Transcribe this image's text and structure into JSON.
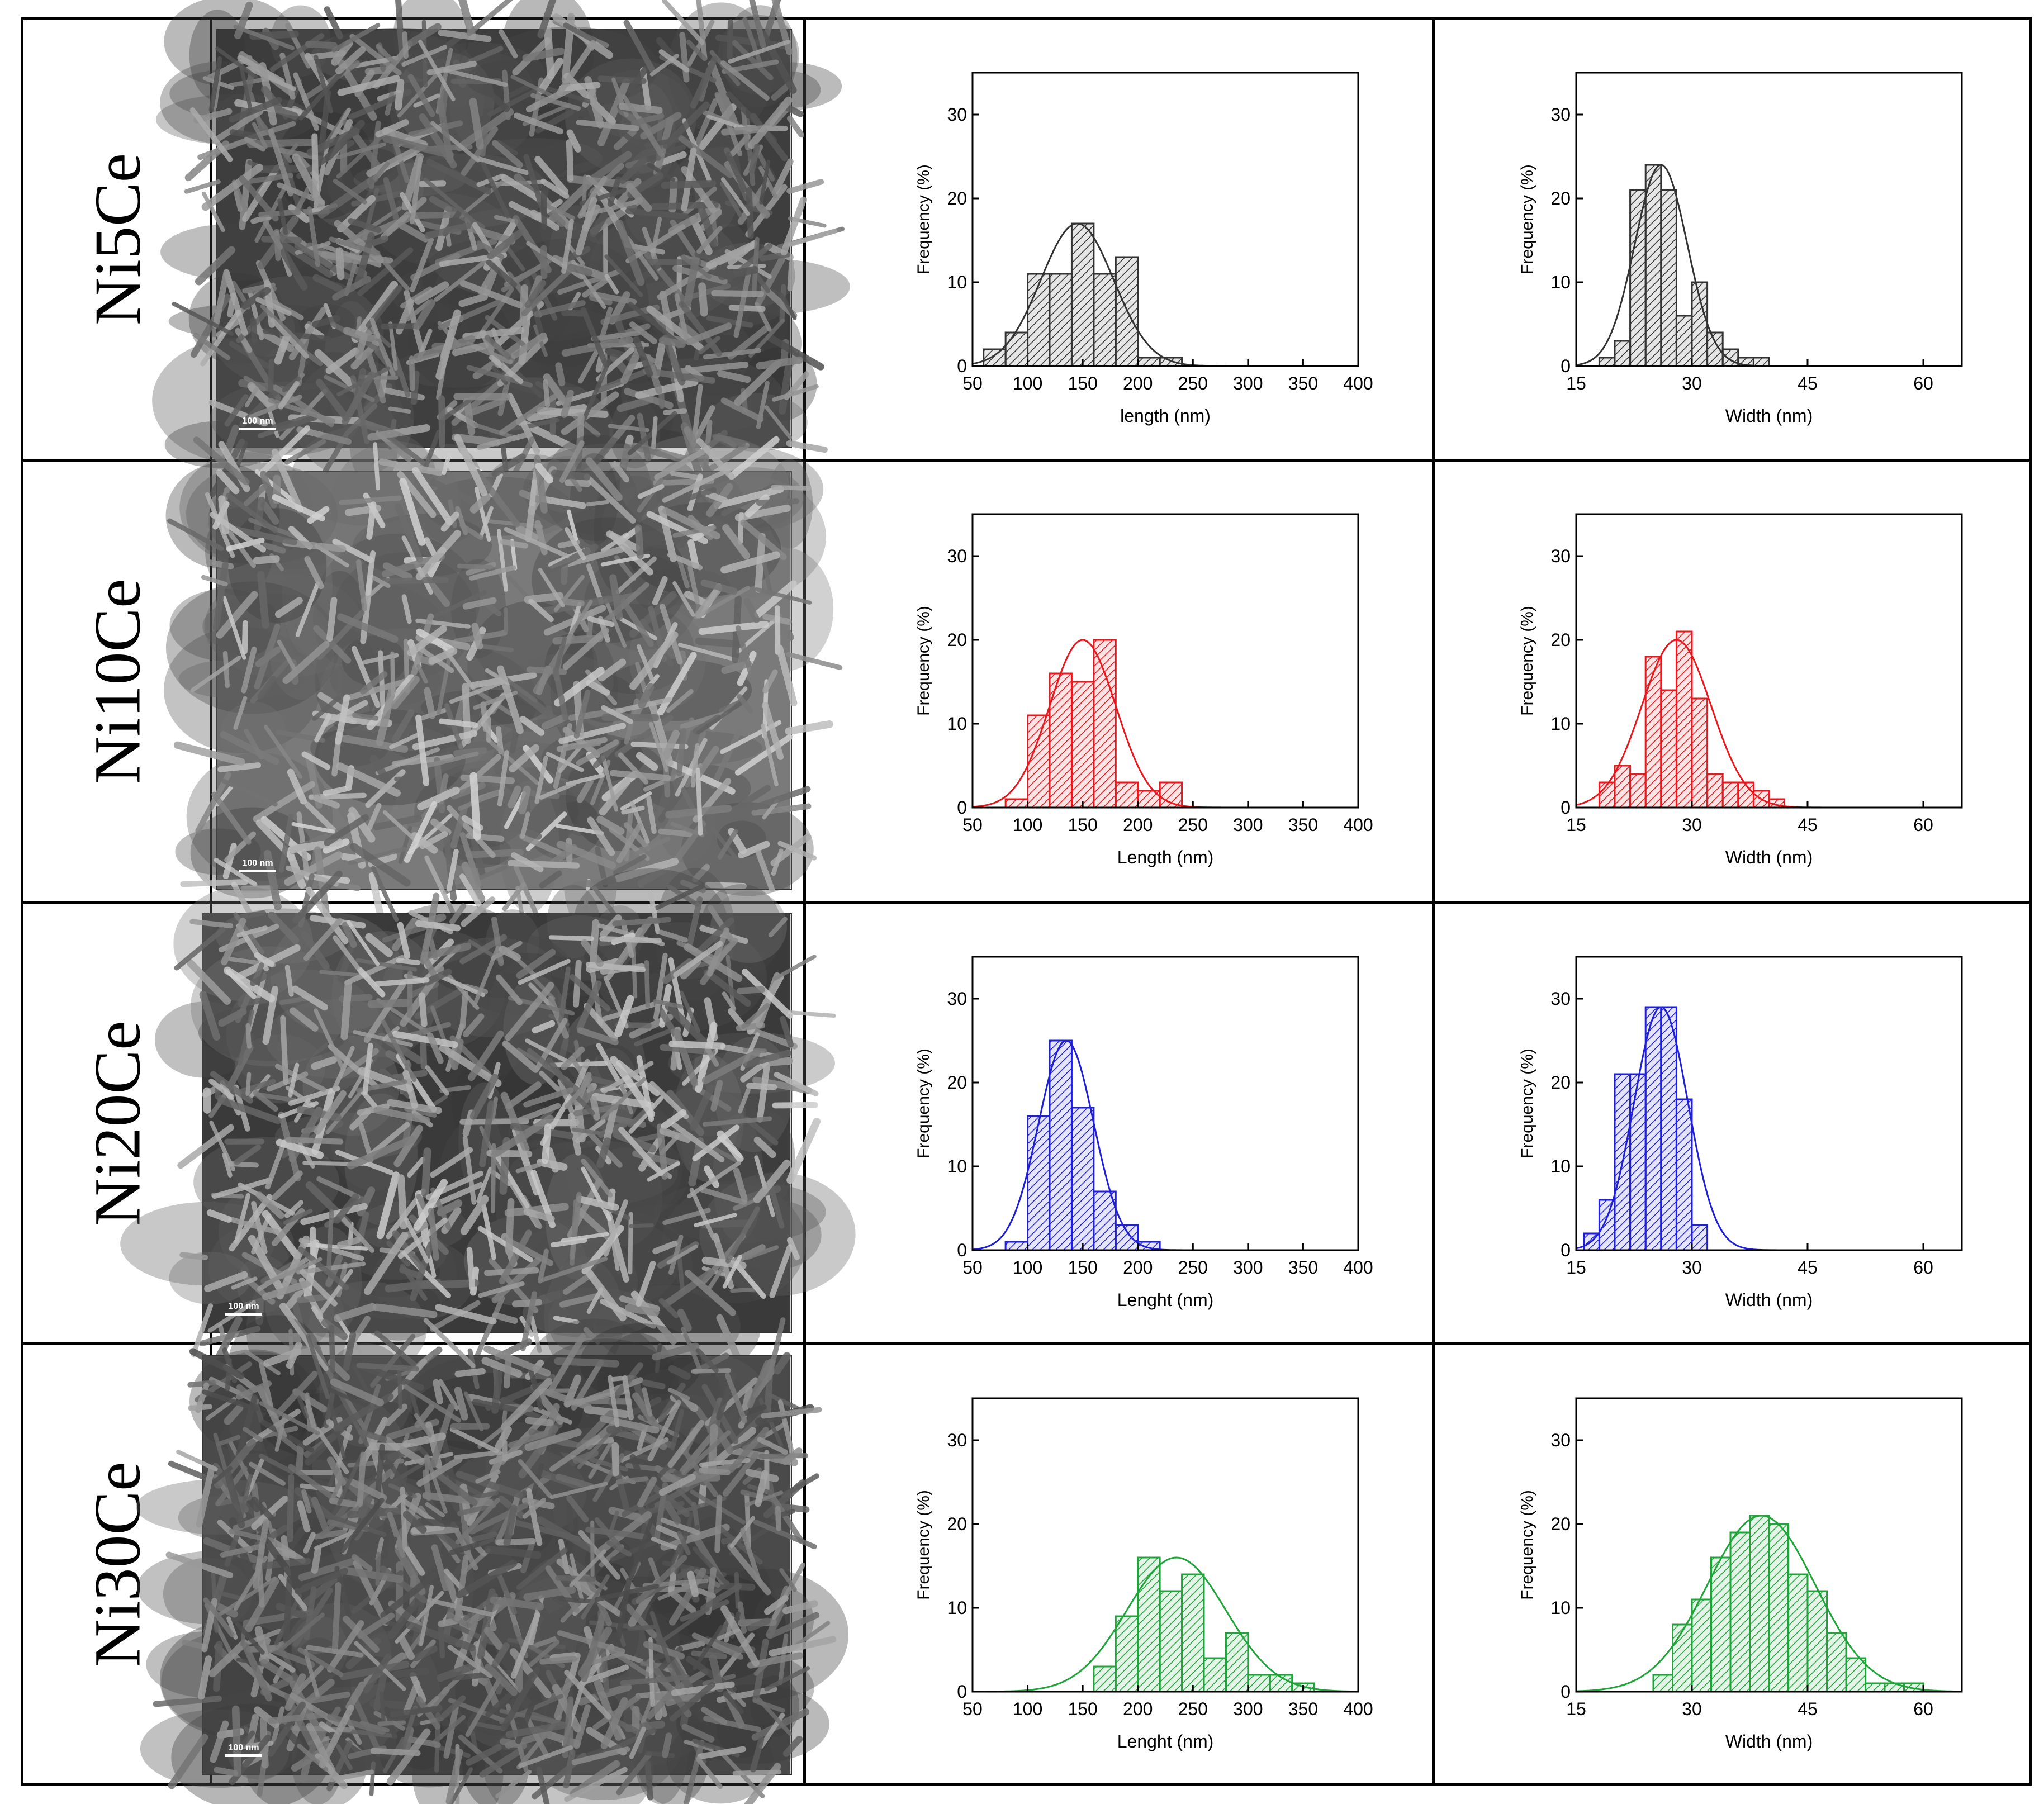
{
  "samples": [
    {
      "label": "Ni5Ce",
      "scale_bar": "100 nm"
    },
    {
      "label": "Ni10Ce",
      "scale_bar": "100 nm"
    },
    {
      "label": "Ni20Ce",
      "scale_bar": "100 nm"
    },
    {
      "label": "Ni30Ce",
      "scale_bar": "100 nm"
    }
  ],
  "chart_data": [
    {
      "type": "bar",
      "sample": "Ni5Ce",
      "quantity": "length",
      "color": "#333333",
      "xlabel": "length (nm)",
      "ylabel": "Frequency (%)",
      "xlim": [
        50,
        400
      ],
      "ylim": [
        0,
        35
      ],
      "xticks": [
        50,
        100,
        150,
        200,
        250,
        300,
        350,
        400
      ],
      "yticks": [
        0,
        10,
        20,
        30
      ],
      "bin_width": 20,
      "bin_centers": [
        70,
        90,
        110,
        130,
        150,
        170,
        190,
        210,
        230
      ],
      "values": [
        2,
        4,
        11,
        11,
        17,
        11,
        13,
        1,
        1
      ],
      "fit": {
        "type": "gaussian",
        "mean": 145,
        "sd": 33,
        "peak": 17
      }
    },
    {
      "type": "bar",
      "sample": "Ni5Ce",
      "quantity": "width",
      "color": "#333333",
      "xlabel": "Width (nm)",
      "ylabel": "Frequency (%)",
      "xlim": [
        15,
        65
      ],
      "ylim": [
        0,
        35
      ],
      "xticks": [
        15,
        30,
        45,
        60
      ],
      "yticks": [
        0,
        10,
        20,
        30
      ],
      "bin_width": 2,
      "bin_centers": [
        19,
        21,
        23,
        25,
        27,
        29,
        31,
        33,
        35,
        37,
        39
      ],
      "values": [
        1,
        3,
        21,
        24,
        21,
        6,
        10,
        4,
        2,
        1,
        1
      ],
      "fit": {
        "type": "gaussian",
        "mean": 26,
        "sd": 3.4,
        "peak": 24
      }
    },
    {
      "type": "bar",
      "sample": "Ni10Ce",
      "quantity": "length",
      "color": "#e8191e",
      "xlabel": "Length (nm)",
      "ylabel": "Frequency (%)",
      "xlim": [
        50,
        400
      ],
      "ylim": [
        0,
        35
      ],
      "xticks": [
        50,
        100,
        150,
        200,
        250,
        300,
        350,
        400
      ],
      "yticks": [
        0,
        10,
        20,
        30
      ],
      "bin_width": 20,
      "bin_centers": [
        90,
        110,
        130,
        150,
        170,
        190,
        210,
        230
      ],
      "values": [
        1,
        11,
        16,
        15,
        20,
        3,
        2,
        3
      ],
      "fit": {
        "type": "gaussian",
        "mean": 150,
        "sd": 30,
        "peak": 20
      }
    },
    {
      "type": "bar",
      "sample": "Ni10Ce",
      "quantity": "width",
      "color": "#e8191e",
      "xlabel": "Width (nm)",
      "ylabel": "Frequency (%)",
      "xlim": [
        15,
        65
      ],
      "ylim": [
        0,
        35
      ],
      "xticks": [
        15,
        30,
        45,
        60
      ],
      "yticks": [
        0,
        10,
        20,
        30
      ],
      "bin_width": 2,
      "bin_centers": [
        19,
        21,
        23,
        25,
        27,
        29,
        31,
        33,
        35,
        37,
        39,
        41
      ],
      "values": [
        3,
        5,
        4,
        18,
        14,
        21,
        13,
        4,
        3,
        3,
        2,
        1
      ],
      "fit": {
        "type": "gaussian",
        "mean": 28,
        "sd": 4.5,
        "peak": 20
      }
    },
    {
      "type": "bar",
      "sample": "Ni20Ce",
      "quantity": "length",
      "color": "#1f1fd8",
      "xlabel": "Lenght (nm)",
      "ylabel": "Frequency (%)",
      "xlim": [
        50,
        400
      ],
      "ylim": [
        0,
        35
      ],
      "xticks": [
        50,
        100,
        150,
        200,
        250,
        300,
        350,
        400
      ],
      "yticks": [
        0,
        10,
        20,
        30
      ],
      "bin_width": 20,
      "bin_centers": [
        90,
        110,
        130,
        150,
        170,
        190,
        210
      ],
      "values": [
        1,
        16,
        25,
        17,
        7,
        3,
        1
      ],
      "fit": {
        "type": "gaussian",
        "mean": 135,
        "sd": 25,
        "peak": 25
      }
    },
    {
      "type": "bar",
      "sample": "Ni20Ce",
      "quantity": "width",
      "color": "#1f1fd8",
      "xlabel": "Width (nm)",
      "ylabel": "Frequency (%)",
      "xlim": [
        15,
        65
      ],
      "ylim": [
        0,
        35
      ],
      "xticks": [
        15,
        30,
        45,
        60
      ],
      "yticks": [
        0,
        10,
        20,
        30
      ],
      "bin_width": 2,
      "bin_centers": [
        17,
        19,
        21,
        23,
        25,
        27,
        29,
        31
      ],
      "values": [
        2,
        6,
        21,
        21,
        29,
        29,
        18,
        3
      ],
      "fit": {
        "type": "gaussian",
        "mean": 26,
        "sd": 3.5,
        "peak": 29
      }
    },
    {
      "type": "bar",
      "sample": "Ni30Ce",
      "quantity": "length",
      "color": "#1fa43a",
      "xlabel": "Lenght (nm)",
      "ylabel": "Frequency (%)",
      "xlim": [
        50,
        400
      ],
      "ylim": [
        0,
        35
      ],
      "xticks": [
        50,
        100,
        150,
        200,
        250,
        300,
        350,
        400
      ],
      "yticks": [
        0,
        10,
        20,
        30
      ],
      "bin_width": 20,
      "bin_centers": [
        170,
        190,
        210,
        230,
        250,
        270,
        290,
        310,
        330,
        350
      ],
      "values": [
        3,
        9,
        16,
        12,
        14,
        4,
        7,
        2,
        2,
        1
      ],
      "fit": {
        "type": "gaussian",
        "mean": 235,
        "sd": 45,
        "peak": 16
      }
    },
    {
      "type": "bar",
      "sample": "Ni30Ce",
      "quantity": "width",
      "color": "#1fa43a",
      "xlabel": "Width (nm)",
      "ylabel": "Frequency (%)",
      "xlim": [
        15,
        65
      ],
      "ylim": [
        0,
        35
      ],
      "xticks": [
        15,
        30,
        45,
        60
      ],
      "yticks": [
        0,
        10,
        20,
        30
      ],
      "bin_width": 2.5,
      "bin_centers": [
        26.25,
        28.75,
        31.25,
        33.75,
        36.25,
        38.75,
        41.25,
        43.75,
        46.25,
        48.75,
        51.25,
        53.75,
        56.25,
        58.75
      ],
      "values": [
        2,
        8,
        11,
        16,
        19,
        21,
        20,
        14,
        12,
        7,
        4,
        1,
        1,
        1
      ],
      "fit": {
        "type": "gaussian",
        "mean": 39,
        "sd": 7,
        "peak": 21
      }
    }
  ]
}
